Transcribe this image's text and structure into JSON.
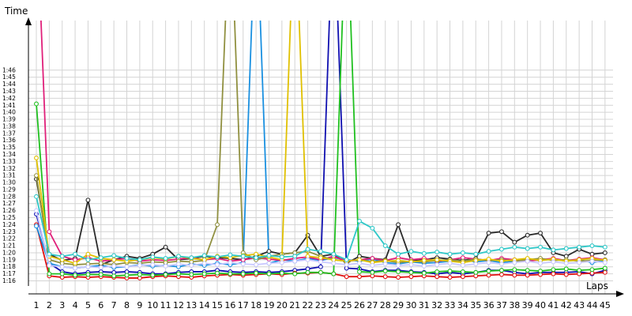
{
  "chart_data": {
    "type": "line",
    "xlabel": "Laps",
    "ylabel": "Time",
    "x": [
      1,
      2,
      3,
      4,
      5,
      6,
      7,
      8,
      9,
      10,
      11,
      12,
      13,
      14,
      15,
      16,
      17,
      18,
      19,
      20,
      21,
      22,
      23,
      24,
      25,
      26,
      27,
      28,
      29,
      30,
      31,
      32,
      33,
      34,
      35,
      36,
      37,
      38,
      39,
      40,
      41,
      42,
      43,
      44,
      45
    ],
    "x_ticks": [
      "1",
      "2",
      "3",
      "4",
      "5",
      "6",
      "7",
      "8",
      "9",
      "10",
      "11",
      "12",
      "13",
      "14",
      "15",
      "16",
      "17",
      "18",
      "19",
      "20",
      "21",
      "22",
      "23",
      "24",
      "25",
      "26",
      "27",
      "28",
      "29",
      "30",
      "31",
      "32",
      "33",
      "34",
      "35",
      "36",
      "37",
      "38",
      "39",
      "40",
      "41",
      "42",
      "43",
      "44",
      "45"
    ],
    "y_ticks": [
      "1:16",
      "1:17",
      "1:18",
      "1:19",
      "1:20",
      "1:21",
      "1:22",
      "1:23",
      "1:24",
      "1:25",
      "1:26",
      "1:27",
      "1:28",
      "1:29",
      "1:30",
      "1:31",
      "1:32",
      "1:33",
      "1:34",
      "1:35",
      "1:36",
      "1:37",
      "1:38",
      "1:39",
      "1:40",
      "1:41",
      "1:42",
      "1:43",
      "1:44",
      "1:45",
      "1:46"
    ],
    "ylim_seconds": [
      75.5,
      112.5
    ],
    "grid": true,
    "series": [
      {
        "color": "#1010b0",
        "values": [
          85.5,
          78.5,
          77.3,
          77.0,
          77.2,
          77.3,
          77.2,
          77.3,
          77.2,
          77.0,
          77.0,
          77.2,
          77.3,
          77.3,
          77.5,
          77.3,
          77.2,
          77.3,
          77.2,
          77.3,
          77.5,
          77.7,
          78.0,
          130,
          77.8,
          77.7,
          77.3,
          77.5,
          77.5,
          77.3,
          77.2,
          77.0,
          77.2,
          77.0,
          77.2,
          77.5,
          77.5,
          77.2,
          77.0,
          77.2,
          77.2,
          77.2,
          77.3,
          77.0,
          77.5
        ]
      },
      {
        "color": "#e01010",
        "values": [
          84.0,
          76.7,
          76.5,
          76.6,
          76.5,
          76.6,
          76.5,
          76.4,
          76.4,
          76.6,
          76.7,
          76.6,
          76.5,
          76.7,
          76.8,
          76.9,
          76.8,
          76.9,
          77.0,
          76.9,
          77.1,
          77.1,
          77.2,
          77.0,
          76.6,
          76.6,
          76.7,
          76.6,
          76.5,
          76.6,
          76.7,
          76.6,
          76.5,
          76.6,
          76.7,
          76.8,
          76.9,
          76.8,
          76.8,
          76.9,
          77.0,
          76.9,
          77.0,
          77.1,
          77.2
        ]
      },
      {
        "color": "#20c020",
        "values": [
          101.2,
          77.0,
          77.0,
          76.8,
          76.9,
          76.9,
          76.7,
          76.8,
          76.9,
          76.8,
          76.9,
          77.0,
          76.9,
          77.0,
          77.1,
          77.0,
          77.0,
          77.1,
          77.0,
          77.1,
          77.0,
          77.2,
          77.2,
          77.0,
          130,
          77.3,
          77.2,
          77.4,
          77.3,
          77.2,
          77.1,
          77.3,
          77.4,
          77.3,
          77.2,
          77.4,
          77.5,
          77.6,
          77.5,
          77.4,
          77.6,
          77.7,
          77.5,
          77.6,
          77.8
        ]
      },
      {
        "color": "#1a90e0",
        "values": [
          83.8,
          78.5,
          78.0,
          77.8,
          78.0,
          78.2,
          77.9,
          78.0,
          78.3,
          78.1,
          78.2,
          78.0,
          78.4,
          78.2,
          78.5,
          78.3,
          78.6,
          130,
          78.5,
          79.0,
          78.8,
          79.2,
          78.9,
          79.3,
          79.0,
          78.8,
          79.1,
          78.6,
          78.4,
          78.7,
          78.5,
          78.6,
          78.8,
          79.0,
          78.7,
          78.9,
          78.6,
          78.8,
          79.0,
          78.9,
          79.1,
          78.8,
          79.0,
          78.6,
          78.9
        ]
      },
      {
        "color": "#2a2a2a",
        "values": [
          90.5,
          79.8,
          78.9,
          79.2,
          87.5,
          78.3,
          79.0,
          79.5,
          79.2,
          79.8,
          80.8,
          79.0,
          79.2,
          79.5,
          79.3,
          79.2,
          79.0,
          79.5,
          80.2,
          79.8,
          80.0,
          82.5,
          79.5,
          79.8,
          78.5,
          79.5,
          79.2,
          79.0,
          84.0,
          78.8,
          79.0,
          79.3,
          79.1,
          78.9,
          79.2,
          82.8,
          83.0,
          81.5,
          82.5,
          82.8,
          80.0,
          79.5,
          80.5,
          79.8,
          80.0
        ]
      },
      {
        "color": "#e0207a",
        "values": [
          130,
          83.0,
          79.5,
          79.0,
          79.3,
          78.8,
          79.0,
          79.2,
          78.8,
          79.0,
          78.9,
          79.1,
          79.3,
          79.0,
          79.2,
          78.8,
          79.0,
          79.3,
          79.1,
          78.9,
          79.2,
          79.4,
          79.0,
          79.5,
          78.8,
          79.0,
          79.2,
          78.9,
          79.3,
          79.0,
          79.2,
          78.8,
          79.0,
          79.3,
          79.1,
          78.9,
          79.2,
          79.0,
          78.8,
          79.0,
          79.2,
          78.9,
          79.1,
          79.3,
          79.0
        ]
      },
      {
        "color": "#909040",
        "values": [
          91.0,
          79.0,
          78.5,
          78.3,
          78.4,
          78.5,
          78.3,
          78.6,
          78.5,
          78.7,
          78.6,
          78.8,
          78.7,
          78.9,
          84.0,
          130,
          80.0,
          79.0,
          79.5,
          79.8,
          80.0,
          80.2,
          79.5,
          79.0,
          78.8,
          79.0,
          78.7,
          78.9,
          78.6,
          78.8,
          78.7,
          78.9,
          79.0,
          78.8,
          79.1,
          78.9,
          79.0,
          78.8,
          79.0,
          79.2,
          78.9,
          79.0,
          78.8,
          78.9,
          79.0
        ]
      },
      {
        "color": "#e0c000",
        "values": [
          93.5,
          79.5,
          79.0,
          78.5,
          79.8,
          79.2,
          79.0,
          78.8,
          79.0,
          79.3,
          79.1,
          79.5,
          79.2,
          79.0,
          79.5,
          79.3,
          79.6,
          79.8,
          79.4,
          79.0,
          130,
          79.5,
          79.3,
          79.0,
          78.8,
          79.0,
          78.6,
          78.8,
          78.9,
          78.7,
          78.9,
          79.0,
          78.8,
          78.6,
          78.9,
          79.1,
          78.8,
          79.0,
          79.2,
          78.9,
          79.1,
          78.8,
          79.0,
          79.2,
          78.9
        ]
      },
      {
        "color": "#30c8c8",
        "values": [
          88.0,
          79.8,
          79.5,
          79.8,
          79.0,
          79.3,
          79.6,
          79.2,
          79.0,
          79.4,
          79.2,
          79.5,
          79.3,
          79.6,
          79.4,
          79.7,
          79.5,
          79.3,
          79.6,
          79.4,
          79.5,
          80.5,
          80.2,
          79.8,
          79.0,
          84.5,
          83.5,
          81.0,
          79.8,
          80.2,
          79.9,
          80.1,
          79.8,
          80.0,
          79.8,
          80.2,
          80.5,
          80.8,
          80.6,
          80.8,
          80.4,
          80.6,
          80.8,
          81.0,
          80.8
        ]
      },
      {
        "color": "#c8c8ff",
        "values": [
          86.0,
          78.2,
          78.0,
          77.8,
          78.0,
          77.9,
          78.1,
          78.0,
          78.2,
          78.3,
          78.1,
          78.4,
          78.2,
          78.5,
          78.3,
          78.6,
          78.4,
          78.3,
          78.5,
          78.6,
          78.8,
          79.0,
          78.7,
          78.5,
          78.3,
          78.5,
          78.2,
          78.4,
          78.2,
          78.3,
          78.1,
          78.3,
          78.5,
          78.2,
          78.4,
          78.6,
          78.4,
          78.6,
          78.8,
          78.5,
          78.7,
          78.5,
          78.6,
          78.8,
          78.6
        ]
      }
    ]
  }
}
